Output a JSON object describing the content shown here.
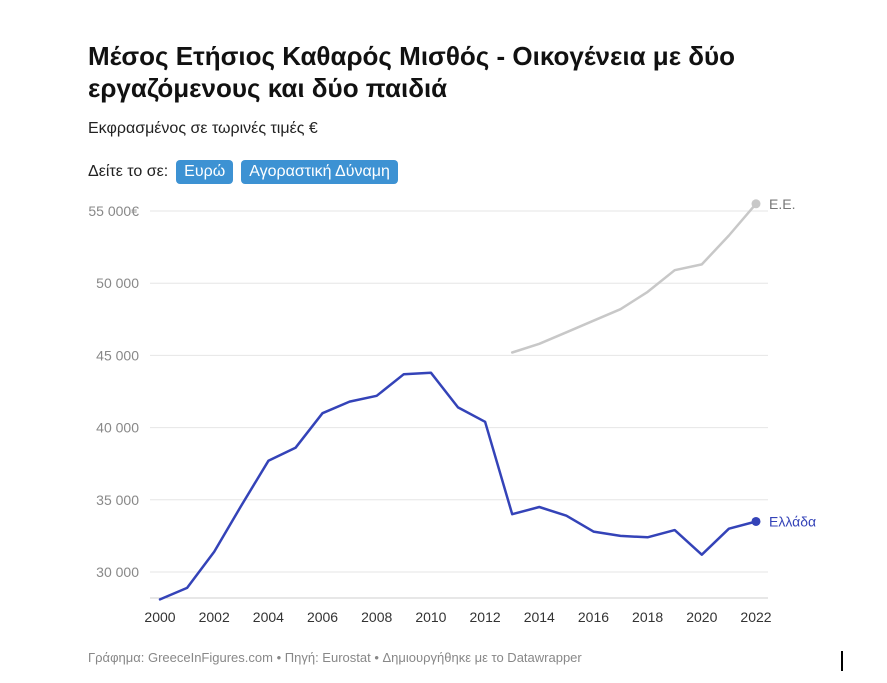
{
  "header": {
    "title": "Μέσος Ετήσιος Καθαρός Μισθός - Οικογένεια με δύο εργαζόμενους και δύο παιδιά",
    "subtitle": "Εκφρασμένος σε τωρινές τιμές €",
    "toggle_label": "Δείτε το σε:",
    "toggle_options": [
      "Ευρώ",
      "Αγοραστική Δύναμη"
    ]
  },
  "footer": {
    "text": "Γράφημα: GreeceInFigures.com • Πηγή: Eurostat • Δημιουργήθηκε με το Datawrapper"
  },
  "colors": {
    "greece": "#3443b8",
    "eu": "#c8c8c8",
    "grid": "#e6e6e6",
    "button": "#3d92d3"
  },
  "chart_data": {
    "type": "line",
    "title": "Μέσος Ετήσιος Καθαρός Μισθός - Οικογένεια με δύο εργαζόμενους και δύο παιδιά",
    "xlabel": "",
    "ylabel": "",
    "xlim": [
      2000,
      2022
    ],
    "ylim": [
      28000,
      56000
    ],
    "y_ticks": [
      30000,
      35000,
      40000,
      45000,
      50000,
      55000
    ],
    "y_tick_labels": [
      "30 000",
      "35 000",
      "40 000",
      "45 000",
      "50 000",
      "55 000€"
    ],
    "x_ticks": [
      2000,
      2002,
      2004,
      2006,
      2008,
      2010,
      2012,
      2014,
      2016,
      2018,
      2020,
      2022
    ],
    "x_tick_labels": [
      "2000",
      "2002",
      "2004",
      "2006",
      "2008",
      "2010",
      "2012",
      "2014",
      "2016",
      "2018",
      "2020",
      "2022"
    ],
    "grid": true,
    "series": [
      {
        "name": "Ελλάδα",
        "color": "#3443b8",
        "x": [
          2000,
          2001,
          2002,
          2003,
          2004,
          2005,
          2006,
          2007,
          2008,
          2009,
          2010,
          2011,
          2012,
          2013,
          2014,
          2015,
          2016,
          2017,
          2018,
          2019,
          2020,
          2021,
          2022
        ],
        "values": [
          28100,
          28900,
          31400,
          34600,
          37700,
          38600,
          41000,
          41800,
          42200,
          43700,
          43800,
          41400,
          40400,
          34000,
          34500,
          33900,
          32800,
          32500,
          32400,
          32900,
          31200,
          33000,
          33500
        ]
      },
      {
        "name": "Ε.Ε.",
        "color": "#c8c8c8",
        "x": [
          2013,
          2014,
          2015,
          2016,
          2017,
          2018,
          2019,
          2020,
          2021,
          2022
        ],
        "values": [
          45200,
          45800,
          46600,
          47400,
          48200,
          49400,
          50900,
          51300,
          53300,
          55500
        ]
      }
    ]
  }
}
